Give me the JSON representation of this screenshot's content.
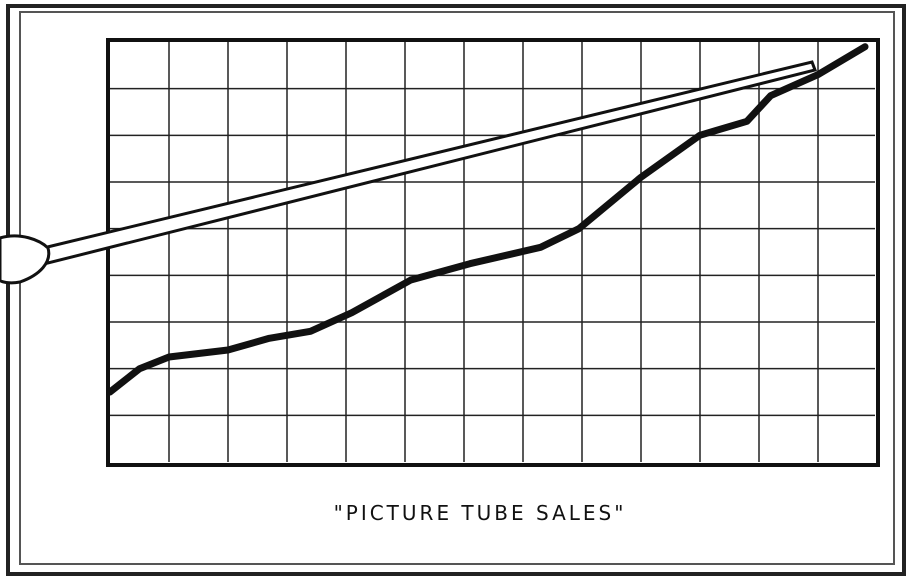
{
  "chart_data": {
    "type": "line",
    "title": "\"PICTURE TUBE SALES\"",
    "x": [
      0,
      0.5,
      1.0,
      2.0,
      2.7,
      3.4,
      4.1,
      5.1,
      6.1,
      7.3,
      7.95,
      9.0,
      10.0,
      10.8,
      11.2,
      12.0,
      12.8
    ],
    "values": [
      1.5,
      2.0,
      2.25,
      2.4,
      2.65,
      2.8,
      3.2,
      3.9,
      4.25,
      4.6,
      5.0,
      6.1,
      7.0,
      7.3,
      7.85,
      8.3,
      8.9
    ],
    "color": "#111111",
    "xlim": [
      0,
      12.8
    ],
    "ylim": [
      0,
      9
    ],
    "grid": true
  }
}
